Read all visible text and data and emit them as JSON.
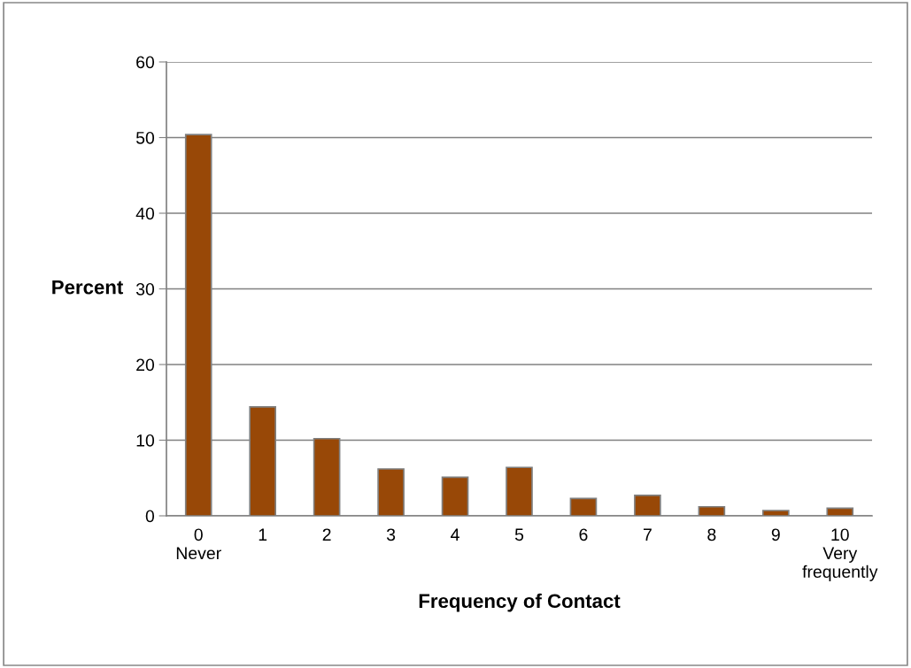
{
  "chart_data": {
    "type": "bar",
    "xlabel": "Frequency of Contact",
    "ylabel": "Percent",
    "categories": [
      "0\nNever",
      "1",
      "2",
      "3",
      "4",
      "5",
      "6",
      "7",
      "8",
      "9",
      "10\nVery\nfrequently"
    ],
    "values": [
      50.4,
      14.4,
      10.2,
      6.2,
      5.1,
      6.4,
      2.3,
      2.7,
      1.2,
      0.7,
      1.0
    ],
    "color": "#984807",
    "ylim": [
      0,
      60
    ],
    "yticks": [
      0,
      10,
      20,
      30,
      40,
      50,
      60
    ],
    "grid": "y",
    "legend": false
  }
}
